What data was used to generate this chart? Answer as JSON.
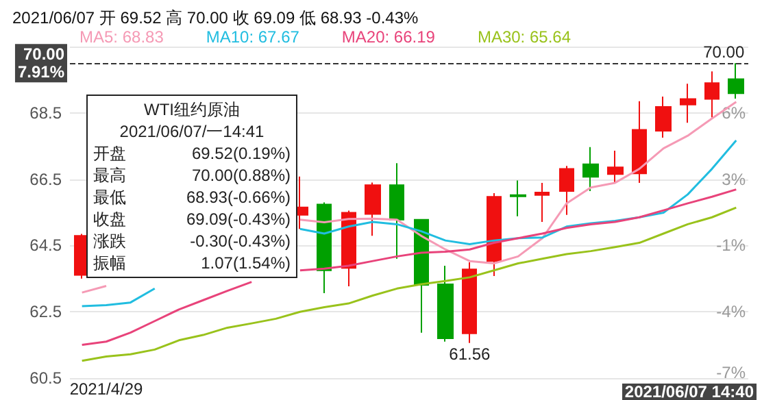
{
  "chart_data": {
    "type": "candlestick",
    "title": "2021/06/07 开 69.52 高 70.00 收 69.09 低 68.93 -0.43%",
    "categories": [
      null,
      "2021/4/29",
      null,
      null,
      null,
      null,
      null,
      null,
      null,
      null,
      null,
      null,
      null,
      null,
      null,
      null,
      null,
      null,
      null,
      null,
      null,
      null,
      null,
      null,
      null,
      null,
      null,
      null
    ],
    "series": [
      {
        "ohlc": [
          [
            63.61,
            64.85,
            63.5,
            64.79
          ],
          null,
          null,
          null,
          null,
          null,
          null,
          null,
          null,
          [
            65.42,
            66.58,
            65.0,
            65.65
          ],
          [
            65.74,
            65.8,
            63.06,
            63.75
          ],
          [
            63.82,
            65.55,
            63.27,
            65.49
          ],
          [
            65.45,
            66.4,
            64.79,
            66.32
          ],
          [
            66.32,
            66.98,
            64.1,
            65.28
          ],
          [
            65.28,
            65.3,
            61.87,
            63.31
          ],
          [
            63.33,
            63.89,
            61.6,
            61.7
          ],
          [
            61.85,
            63.99,
            61.56,
            63.78
          ],
          [
            64.03,
            66.08,
            63.58,
            65.97
          ],
          [
            66.02,
            66.46,
            65.38,
            65.98
          ],
          [
            66.02,
            66.39,
            65.21,
            66.1
          ],
          [
            66.14,
            66.9,
            65.42,
            66.81
          ],
          [
            66.95,
            67.47,
            66.14,
            66.57
          ],
          [
            66.65,
            67.36,
            66.39,
            66.86
          ],
          [
            66.67,
            68.85,
            66.39,
            67.99
          ],
          [
            67.96,
            68.99,
            67.75,
            68.68
          ],
          [
            68.75,
            69.38,
            68.2,
            68.92
          ],
          [
            68.92,
            69.75,
            68.36,
            69.4
          ],
          [
            69.52,
            70.0,
            68.93,
            69.09
          ]
        ],
        "colors": [
          "#f01010",
          null,
          null,
          null,
          null,
          null,
          null,
          null,
          null,
          "#f01010",
          "#00a000",
          "#f01010",
          "#f01010",
          "#00a000",
          "#00a000",
          "#00a000",
          "#f01010",
          "#f01010",
          "#00a000",
          "#f01010",
          "#f01010",
          "#00a000",
          "#f01010",
          "#f01010",
          "#f01010",
          "#f01010",
          "#f01010",
          "#00a000"
        ]
      },
      {
        "type": "line",
        "name": "MA5: 68.83",
        "color": "#f59ab5",
        "values": [
          63.08,
          63.28,
          null,
          null,
          null,
          null,
          null,
          null,
          null,
          65.28,
          65.2,
          65.3,
          65.31,
          65.28,
          64.79,
          64.38,
          64.03,
          63.96,
          64.17,
          64.72,
          65.77,
          66.25,
          66.39,
          66.81,
          67.43,
          67.81,
          68.33,
          68.83
        ]
      },
      {
        "type": "line",
        "name": "MA10: 67.67",
        "color": "#21bde0",
        "values": [
          62.67,
          62.7,
          62.78,
          63.2,
          null,
          null,
          null,
          null,
          null,
          65.0,
          64.86,
          65.07,
          65.21,
          65.14,
          64.93,
          64.65,
          64.54,
          64.65,
          64.72,
          64.74,
          65.07,
          65.17,
          65.24,
          65.35,
          65.49,
          66.04,
          66.81,
          67.67
        ]
      },
      {
        "type": "line",
        "name": "MA20: 66.19",
        "color": "#e8437a",
        "values": [
          61.5,
          61.6,
          61.87,
          62.22,
          62.57,
          62.85,
          63.13,
          63.4,
          null,
          63.75,
          63.8,
          63.89,
          64.03,
          64.17,
          64.28,
          64.31,
          64.38,
          64.58,
          64.72,
          64.86,
          65.03,
          65.14,
          65.21,
          65.35,
          65.56,
          65.77,
          65.97,
          66.19
        ]
      },
      {
        "type": "line",
        "name": "MA30: 65.64",
        "color": "#99c21b",
        "values": [
          61.02,
          61.15,
          61.22,
          61.36,
          61.64,
          61.8,
          62.02,
          62.15,
          62.29,
          62.5,
          62.64,
          62.75,
          62.99,
          63.2,
          63.33,
          63.43,
          63.54,
          63.75,
          63.96,
          64.1,
          64.24,
          64.33,
          64.45,
          64.58,
          64.86,
          65.14,
          65.35,
          65.64
        ]
      }
    ],
    "ylim": [
      60.5,
      70.5
    ],
    "yticks": [
      60.5,
      62.5,
      64.5,
      66.5,
      68.5,
      {
        "value": 70.5,
        "label": null
      }
    ],
    "y2lim": [
      -6.74,
      8.68
    ],
    "y2ticks": [
      {
        "value": -6.74,
        "label": "-7%"
      },
      {
        "value": -3.65,
        "label": "-4%"
      },
      {
        "value": -0.57,
        "label": "-1%"
      },
      {
        "value": 2.51,
        "label": "3%"
      },
      {
        "value": 5.6,
        "label": "6%"
      }
    ],
    "grid": "y",
    "legend": "top left",
    "marker": "none",
    "ref_lines": [
      {
        "axis": "y",
        "value": 70.0,
        "label": "70.00\n7.91%",
        "color": "#333333",
        "line_style": "dashed"
      }
    ],
    "annotations": [
      "WTI纽约原油",
      "2021/06/07/一14:41",
      "开盘 69.52(0.19%)",
      "最高 70.00(0.88%)",
      "最低 68.93(-0.66%)",
      "收盘 69.09(-0.43%)",
      "涨跌 -0.30(-0.43%)",
      "振幅 1.07(1.54%)",
      "2021/06/07 14:40",
      {
        "text": "70.00",
        "y": 70.0
      },
      {
        "text": "61.56",
        "y": 61.56
      }
    ]
  }
}
